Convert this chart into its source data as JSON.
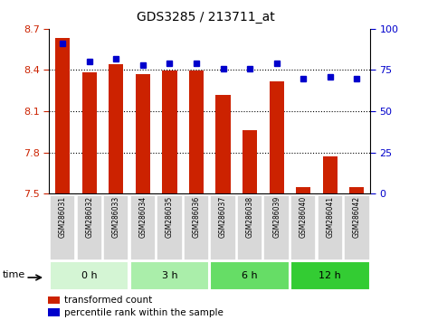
{
  "title": "GDS3285 / 213711_at",
  "samples": [
    "GSM286031",
    "GSM286032",
    "GSM286033",
    "GSM286034",
    "GSM286035",
    "GSM286036",
    "GSM286037",
    "GSM286038",
    "GSM286039",
    "GSM286040",
    "GSM286041",
    "GSM286042"
  ],
  "bar_values": [
    8.63,
    8.385,
    8.44,
    8.37,
    8.395,
    8.395,
    8.22,
    7.965,
    8.32,
    7.545,
    7.77,
    7.545
  ],
  "percentile_values": [
    91,
    80,
    82,
    78,
    79,
    79,
    76,
    76,
    79,
    70,
    71,
    70
  ],
  "ylim_left": [
    7.5,
    8.7
  ],
  "ylim_right": [
    0,
    100
  ],
  "yticks_left": [
    7.5,
    7.8,
    8.1,
    8.4,
    8.7
  ],
  "yticks_right": [
    0,
    25,
    50,
    75,
    100
  ],
  "ytick_labels_left": [
    "7.5",
    "7.8",
    "8.1",
    "8.4",
    "8.7"
  ],
  "ytick_labels_right": [
    "0",
    "25",
    "50",
    "75",
    "100"
  ],
  "bar_color": "#cc2200",
  "dot_color": "#0000cc",
  "bar_bottom": 7.5,
  "groups": [
    {
      "label": "0 h",
      "start": 0,
      "end": 3,
      "color": "#d4f5d4"
    },
    {
      "label": "3 h",
      "start": 3,
      "end": 6,
      "color": "#aaeeaa"
    },
    {
      "label": "6 h",
      "start": 6,
      "end": 9,
      "color": "#66dd66"
    },
    {
      "label": "12 h",
      "start": 9,
      "end": 12,
      "color": "#33cc33"
    }
  ],
  "time_label": "time",
  "legend_bar_label": "transformed count",
  "legend_dot_label": "percentile rank within the sample",
  "grid_color": "black",
  "sample_box_color": "#d8d8d8",
  "tick_label_color_left": "#cc2200",
  "tick_label_color_right": "#0000cc"
}
